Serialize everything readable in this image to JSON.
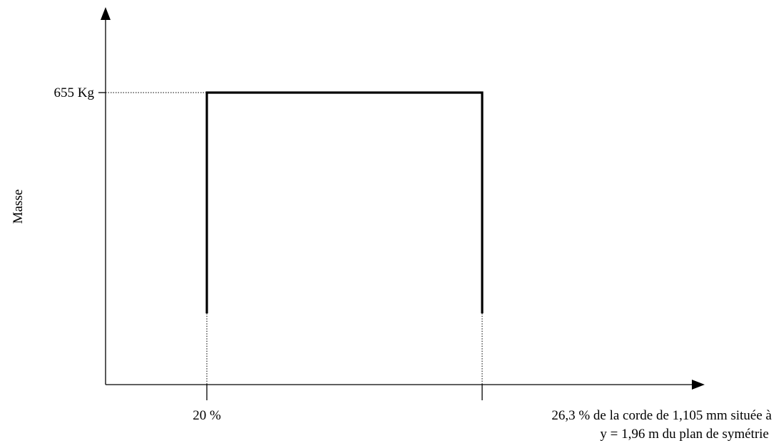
{
  "diagram": {
    "y_axis_label": "Masse",
    "y_tick_label": "655 Kg",
    "x_tick_start_label": "20 %",
    "x_tick_end_label_line1": "26,3 % de la corde de 1,105 mm située à",
    "x_tick_end_label_line2": "y = 1,96 m du plan de symétrie"
  }
}
